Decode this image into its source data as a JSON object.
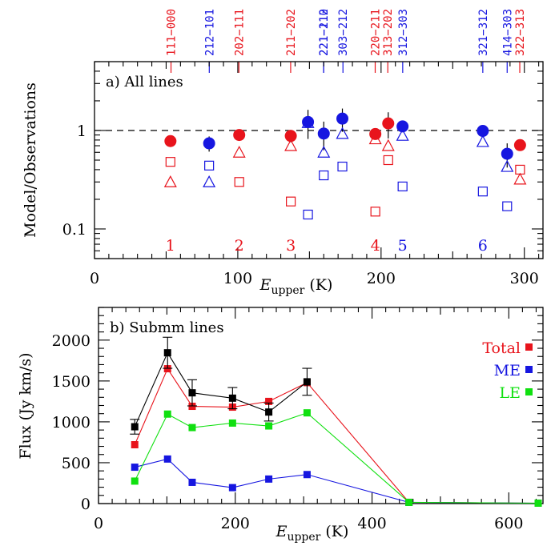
{
  "chart_data": [
    {
      "type": "scatter",
      "panel_label": "a) All lines",
      "xlabel_main": "E",
      "xlabel_sub": "upper",
      "xlabel_unit": "(K)",
      "ylabel": "Model/Observations",
      "xlim": [
        0,
        313
      ],
      "ylim": [
        0.05,
        5
      ],
      "yscale": "log",
      "x_ticks": [
        0,
        100,
        200,
        300
      ],
      "y_ticks": [
        0.1,
        1
      ],
      "reference_line": 1,
      "colors": {
        "red": "#e8141c",
        "blue": "#1616e0"
      },
      "transition_labels": [
        {
          "text": "111−000",
          "x": 53.4,
          "color": "red"
        },
        {
          "text": "212−101",
          "x": 80.1,
          "color": "blue"
        },
        {
          "text": "202−111",
          "x": 100.8,
          "color": "red"
        },
        {
          "text": "211−202",
          "x": 136.9,
          "color": "red"
        },
        {
          "text": "221−110",
          "x": 159.9,
          "color": "blue"
        },
        {
          "text": "221−212",
          "x": 159.9,
          "color": "blue"
        },
        {
          "text": "303−212",
          "x": 173.4,
          "color": "blue"
        },
        {
          "text": "220−211",
          "x": 195.9,
          "color": "red"
        },
        {
          "text": "313−202",
          "x": 204.7,
          "color": "red"
        },
        {
          "text": "312−303",
          "x": 215.1,
          "color": "blue"
        },
        {
          "text": "321−312",
          "x": 271.0,
          "color": "blue"
        },
        {
          "text": "414−303",
          "x": 288.0,
          "color": "blue"
        },
        {
          "text": "322−313",
          "x": 296.8,
          "color": "red"
        }
      ],
      "group_numbers": [
        {
          "text": "1",
          "x": 53,
          "color": "red"
        },
        {
          "text": "2",
          "x": 101,
          "color": "red"
        },
        {
          "text": "3",
          "x": 137,
          "color": "red"
        },
        {
          "text": "4",
          "x": 196,
          "color": "red"
        },
        {
          "text": "5",
          "x": 215,
          "color": "blue"
        },
        {
          "text": "6",
          "x": 271,
          "color": "blue"
        }
      ],
      "series": [
        {
          "marker": "filled-circle",
          "points": [
            {
              "x": 53,
              "y": 0.78,
              "c": "red",
              "err": 0.04
            },
            {
              "x": 80,
              "y": 0.74,
              "c": "blue",
              "err": 0.13
            },
            {
              "x": 101,
              "y": 0.9,
              "c": "red",
              "err": 0.05
            },
            {
              "x": 137,
              "y": 0.88,
              "c": "red",
              "err": 0.12
            },
            {
              "x": 149,
              "y": 1.22,
              "c": "blue",
              "err": 0.4
            },
            {
              "x": 160,
              "y": 0.93,
              "c": "blue",
              "err": 0.3
            },
            {
              "x": 173,
              "y": 1.32,
              "c": "blue",
              "err": 0.35
            },
            {
              "x": 196,
              "y": 0.92,
              "c": "red",
              "err": 0.07
            },
            {
              "x": 205,
              "y": 1.18,
              "c": "red",
              "err": 0.35
            },
            {
              "x": 215,
              "y": 1.1,
              "c": "blue",
              "err": 0.06
            },
            {
              "x": 271,
              "y": 0.99,
              "c": "blue",
              "err": 0.06
            },
            {
              "x": 288,
              "y": 0.58,
              "c": "blue",
              "err": 0.16
            },
            {
              "x": 297,
              "y": 0.71,
              "c": "red",
              "err": 0.08
            }
          ]
        },
        {
          "marker": "open-triangle",
          "points": [
            {
              "x": 53,
              "y": 0.3,
              "c": "red"
            },
            {
              "x": 80,
              "y": 0.3,
              "c": "blue"
            },
            {
              "x": 101,
              "y": 0.6,
              "c": "red"
            },
            {
              "x": 137,
              "y": 0.7,
              "c": "red"
            },
            {
              "x": 149,
              "y": 1.2,
              "c": "blue"
            },
            {
              "x": 160,
              "y": 0.6,
              "c": "blue"
            },
            {
              "x": 173,
              "y": 0.93,
              "c": "blue"
            },
            {
              "x": 196,
              "y": 0.82,
              "c": "red"
            },
            {
              "x": 205,
              "y": 0.7,
              "c": "red"
            },
            {
              "x": 215,
              "y": 0.89,
              "c": "blue"
            },
            {
              "x": 271,
              "y": 0.77,
              "c": "blue"
            },
            {
              "x": 288,
              "y": 0.43,
              "c": "blue"
            },
            {
              "x": 297,
              "y": 0.32,
              "c": "red"
            }
          ]
        },
        {
          "marker": "open-square",
          "points": [
            {
              "x": 53,
              "y": 0.48,
              "c": "red"
            },
            {
              "x": 80,
              "y": 0.44,
              "c": "blue"
            },
            {
              "x": 101,
              "y": 0.3,
              "c": "red"
            },
            {
              "x": 137,
              "y": 0.19,
              "c": "red"
            },
            {
              "x": 149,
              "y": 0.14,
              "c": "blue"
            },
            {
              "x": 160,
              "y": 0.35,
              "c": "blue"
            },
            {
              "x": 173,
              "y": 0.43,
              "c": "blue"
            },
            {
              "x": 196,
              "y": 0.15,
              "c": "red"
            },
            {
              "x": 205,
              "y": 0.5,
              "c": "red"
            },
            {
              "x": 215,
              "y": 0.27,
              "c": "blue"
            },
            {
              "x": 271,
              "y": 0.24,
              "c": "blue"
            },
            {
              "x": 288,
              "y": 0.17,
              "c": "blue"
            },
            {
              "x": 297,
              "y": 0.4,
              "c": "red"
            }
          ]
        }
      ]
    },
    {
      "type": "line",
      "panel_label": "b) Submm lines",
      "xlabel_main": "E",
      "xlabel_sub": "upper",
      "xlabel_unit": "(K)",
      "ylabel": "Flux (Jy km/s)",
      "xlim": [
        0,
        650
      ],
      "ylim": [
        0,
        2400
      ],
      "x_ticks": [
        0,
        200,
        400,
        600
      ],
      "y_ticks": [
        0,
        500,
        1000,
        1500,
        2000
      ],
      "x": [
        53,
        101,
        137,
        196,
        249,
        305,
        454,
        643
      ],
      "series": [
        {
          "name": "Total",
          "color": "#e8141c",
          "values": [
            720,
            1650,
            1190,
            1180,
            1250,
            1480,
            15,
            5
          ]
        },
        {
          "name": "ME",
          "color": "#1616e0",
          "values": [
            445,
            545,
            260,
            195,
            300,
            355,
            15,
            5
          ]
        },
        {
          "name": "LE",
          "color": "#10e010",
          "values": [
            275,
            1095,
            930,
            985,
            950,
            1110,
            15,
            5
          ]
        },
        {
          "color": "#000000",
          "x": [
            53,
            101,
            137,
            196,
            249,
            305
          ],
          "values": [
            940,
            1845,
            1355,
            1290,
            1120,
            1490
          ],
          "err": [
            90,
            190,
            160,
            130,
            110,
            165
          ]
        }
      ],
      "legend": [
        "Total",
        "ME",
        "LE"
      ],
      "legend_position": "top-right"
    }
  ]
}
